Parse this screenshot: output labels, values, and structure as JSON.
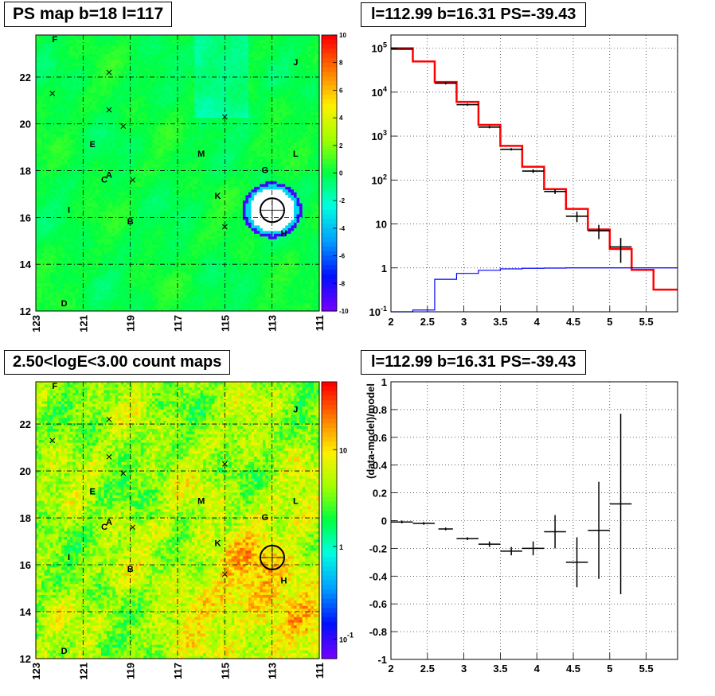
{
  "panels": {
    "tl_title": "PS map b=18 l=117",
    "tr_title": "l=112.99 b=16.31 PS=-39.43",
    "bl_title": "2.50<logE<3.00 count maps",
    "br_title": "l=112.99 b=16.31 PS=-39.43"
  },
  "chart_data": [
    {
      "type": "heatmap",
      "title": "PS map b=18 l=117",
      "xlim": [
        123,
        111
      ],
      "ylim": [
        12,
        23.8
      ],
      "x_ticks": [
        "123",
        "121",
        "119",
        "117",
        "115",
        "113",
        "111"
      ],
      "y_ticks": [
        "12",
        "14",
        "16",
        "18",
        "20",
        "22"
      ],
      "colorbar": {
        "range": [
          -10,
          10
        ],
        "ticks": [
          "10",
          "8",
          "6",
          "4",
          "2",
          "0",
          "-2",
          "-4",
          "-6",
          "-8",
          "-10"
        ]
      },
      "labels": [
        {
          "t": "F",
          "l": 122.2,
          "b": 23.5
        },
        {
          "t": "J",
          "l": 112.0,
          "b": 22.5
        },
        {
          "t": "E",
          "l": 120.6,
          "b": 19.0
        },
        {
          "t": "M",
          "l": 116.0,
          "b": 18.6
        },
        {
          "t": "L",
          "l": 112.0,
          "b": 18.6
        },
        {
          "t": "G",
          "l": 113.3,
          "b": 17.9
        },
        {
          "t": "A",
          "l": 119.9,
          "b": 17.7
        },
        {
          "t": "C",
          "l": 120.1,
          "b": 17.5
        },
        {
          "t": "K",
          "l": 115.3,
          "b": 16.8
        },
        {
          "t": "I",
          "l": 121.6,
          "b": 16.2
        },
        {
          "t": "B",
          "l": 119.0,
          "b": 15.7
        },
        {
          "t": "H",
          "l": 112.5,
          "b": 15.2
        },
        {
          "t": "D",
          "l": 121.8,
          "b": 12.2
        }
      ],
      "markers": [
        {
          "l": 122.3,
          "b": 21.3
        },
        {
          "l": 119.9,
          "b": 22.2
        },
        {
          "l": 119.9,
          "b": 20.6
        },
        {
          "l": 119.3,
          "b": 19.9
        },
        {
          "l": 118.9,
          "b": 17.6
        },
        {
          "l": 115.0,
          "b": 20.3
        },
        {
          "l": 115.0,
          "b": 15.6
        }
      ],
      "source_circle": {
        "l": 112.99,
        "b": 16.31
      }
    },
    {
      "type": "line",
      "title": "l=112.99 b=16.31 PS=-39.43",
      "log_y": true,
      "xlim": [
        2,
        5.93
      ],
      "ylim": [
        0.1,
        200000
      ],
      "x_ticks": [
        "2",
        "2.5",
        "3",
        "3.5",
        "4",
        "4.5",
        "5",
        "5.5"
      ],
      "y_ticks": [
        "10^-1",
        "1",
        "10",
        "10^2",
        "10^3",
        "10^4",
        "10^5"
      ],
      "bin_edges": [
        2.0,
        2.3,
        2.6,
        2.9,
        3.2,
        3.5,
        3.8,
        4.1,
        4.4,
        4.7,
        5.0,
        5.3,
        5.6,
        5.93
      ],
      "series": [
        {
          "color": "#ff0000",
          "values": [
            100000,
            50000,
            17000,
            6000,
            1800,
            600,
            200,
            62,
            22,
            7.5,
            2.7,
            0.9,
            0.32
          ]
        },
        {
          "color": "#0000ff",
          "values": [
            0.1,
            0.11,
            0.55,
            0.75,
            0.88,
            0.95,
            0.98,
            0.99,
            1.0,
            1.0,
            1.0,
            1.0,
            1.0
          ]
        }
      ],
      "data_points": [
        {
          "x": 2.15,
          "y": 95000,
          "lo": 92000,
          "hi": 98000
        },
        {
          "x": 2.75,
          "y": 16000,
          "lo": 15000,
          "hi": 17000
        },
        {
          "x": 3.05,
          "y": 5200,
          "lo": 4900,
          "hi": 5500
        },
        {
          "x": 3.35,
          "y": 1600,
          "lo": 1500,
          "hi": 1700
        },
        {
          "x": 3.65,
          "y": 500,
          "lo": 470,
          "hi": 530
        },
        {
          "x": 3.95,
          "y": 160,
          "lo": 145,
          "hi": 175
        },
        {
          "x": 4.25,
          "y": 55,
          "lo": 48,
          "hi": 62
        },
        {
          "x": 4.55,
          "y": 15,
          "lo": 11,
          "hi": 19
        },
        {
          "x": 4.85,
          "y": 7,
          "lo": 4.5,
          "hi": 9.5
        },
        {
          "x": 5.15,
          "y": 3,
          "lo": 1.3,
          "hi": 4.8
        }
      ]
    },
    {
      "type": "heatmap",
      "title": "2.50<logE<3.00 count maps",
      "xlim": [
        123,
        111
      ],
      "ylim": [
        12,
        23.8
      ],
      "x_ticks": [
        "123",
        "121",
        "119",
        "117",
        "115",
        "113",
        "111"
      ],
      "y_ticks": [
        "12",
        "14",
        "16",
        "18",
        "20",
        "22"
      ],
      "colorbar": {
        "scale": "log",
        "ticks": [
          "10",
          "1",
          "10^-1"
        ]
      },
      "labels": [
        {
          "t": "F",
          "l": 122.2,
          "b": 23.5
        },
        {
          "t": "J",
          "l": 112.0,
          "b": 22.5
        },
        {
          "t": "E",
          "l": 120.6,
          "b": 19.0
        },
        {
          "t": "M",
          "l": 116.0,
          "b": 18.6
        },
        {
          "t": "L",
          "l": 112.0,
          "b": 18.6
        },
        {
          "t": "G",
          "l": 113.3,
          "b": 17.9
        },
        {
          "t": "A",
          "l": 119.9,
          "b": 17.7
        },
        {
          "t": "C",
          "l": 120.1,
          "b": 17.5
        },
        {
          "t": "K",
          "l": 115.3,
          "b": 16.8
        },
        {
          "t": "I",
          "l": 121.6,
          "b": 16.2
        },
        {
          "t": "B",
          "l": 119.0,
          "b": 15.7
        },
        {
          "t": "H",
          "l": 112.5,
          "b": 15.2
        },
        {
          "t": "D",
          "l": 121.8,
          "b": 12.2
        }
      ],
      "markers": [
        {
          "l": 122.3,
          "b": 21.3
        },
        {
          "l": 119.9,
          "b": 22.2
        },
        {
          "l": 119.9,
          "b": 20.6
        },
        {
          "l": 119.3,
          "b": 19.9
        },
        {
          "l": 118.9,
          "b": 17.6
        },
        {
          "l": 115.0,
          "b": 20.3
        },
        {
          "l": 115.0,
          "b": 15.6
        }
      ],
      "source_circle": {
        "l": 112.99,
        "b": 16.31
      }
    },
    {
      "type": "scatter",
      "title": "l=112.99 b=16.31 PS=-39.43",
      "ylabel": "(data-model)/model",
      "xlim": [
        2,
        5.93
      ],
      "ylim": [
        -1,
        1
      ],
      "x_ticks": [
        "2",
        "2.5",
        "3",
        "3.5",
        "4",
        "4.5",
        "5",
        "5.5"
      ],
      "y_ticks": [
        "-1",
        "-0.8",
        "-0.6",
        "-0.4",
        "-0.2",
        "0",
        "0.2",
        "0.4",
        "0.6",
        "0.8",
        "1"
      ],
      "points": [
        {
          "x": 2.15,
          "y": -0.01,
          "xerr": 0.15,
          "yerr": 0.01
        },
        {
          "x": 2.45,
          "y": -0.02,
          "xerr": 0.15,
          "yerr": 0.01
        },
        {
          "x": 2.75,
          "y": -0.06,
          "xerr": 0.1,
          "yerr": 0.01
        },
        {
          "x": 3.05,
          "y": -0.13,
          "xerr": 0.15,
          "yerr": 0.01
        },
        {
          "x": 3.35,
          "y": -0.17,
          "xerr": 0.15,
          "yerr": 0.02
        },
        {
          "x": 3.65,
          "y": -0.22,
          "xerr": 0.15,
          "yerr": 0.03
        },
        {
          "x": 3.95,
          "y": -0.2,
          "xerr": 0.15,
          "yerr": 0.05
        },
        {
          "x": 4.25,
          "y": -0.08,
          "xerr": 0.15,
          "yerr": 0.12
        },
        {
          "x": 4.55,
          "y": -0.3,
          "xerr": 0.15,
          "yerr": 0.18
        },
        {
          "x": 4.85,
          "y": -0.07,
          "xerr": 0.15,
          "yerr": 0.35
        },
        {
          "x": 5.15,
          "y": 0.12,
          "xerr": 0.15,
          "yerr": 0.65
        }
      ]
    }
  ]
}
